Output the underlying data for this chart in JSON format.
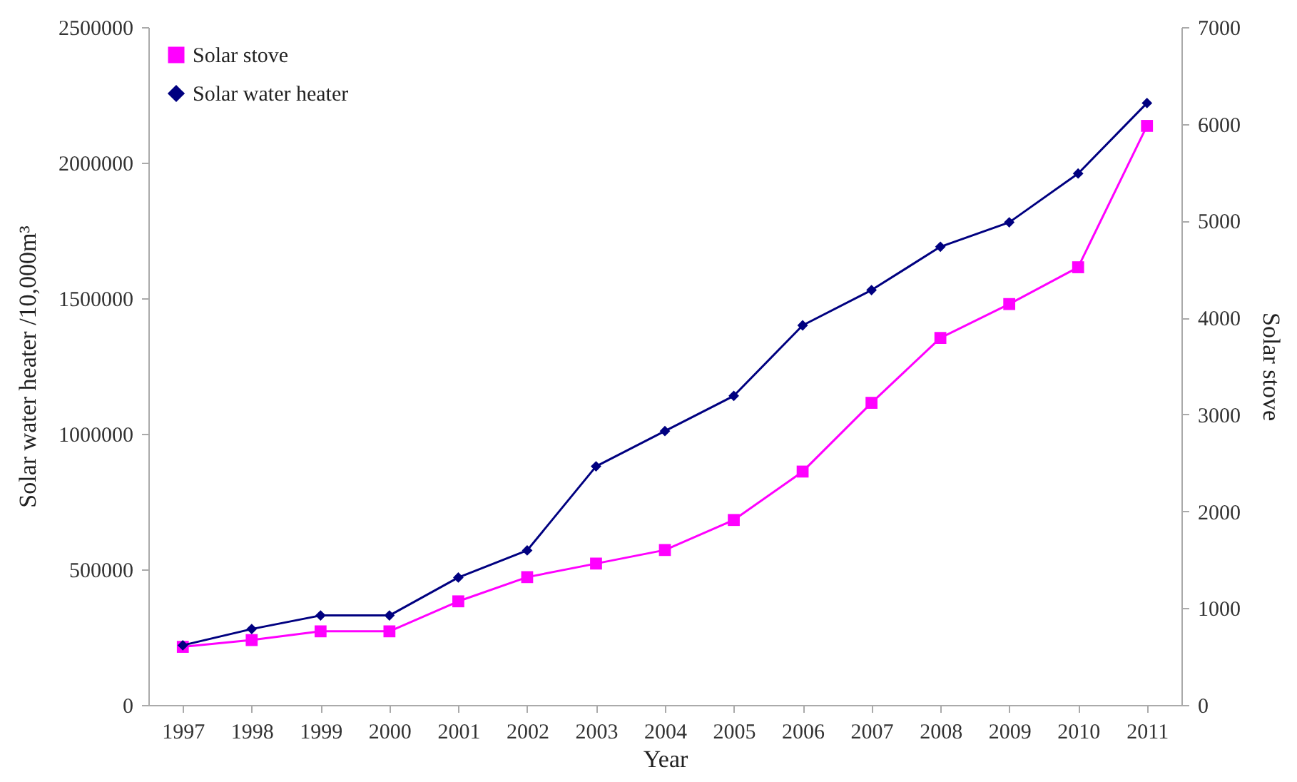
{
  "chart_data": {
    "type": "line",
    "xlabel": "Year",
    "ylabel": "Solar water heater /10,000m³",
    "y2label": "Solar stove",
    "categories": [
      "1997",
      "1998",
      "1999",
      "2000",
      "2001",
      "2002",
      "2003",
      "2004",
      "2005",
      "2006",
      "2007",
      "2008",
      "2009",
      "2010",
      "2011"
    ],
    "series": [
      {
        "name": "Solar stove",
        "color": "#ff00ff",
        "marker": "square",
        "axis": "y2",
        "values": [
          600,
          670,
          760,
          760,
          1070,
          1320,
          1460,
          1600,
          1910,
          2410,
          3120,
          3790,
          4140,
          4520,
          5980
        ]
      },
      {
        "name": "Solar water heater",
        "color": "#000080",
        "marker": "diamond",
        "axis": "y",
        "values": [
          220000,
          280000,
          330000,
          330000,
          470000,
          570000,
          880000,
          1010000,
          1140000,
          1400000,
          1530000,
          1690000,
          1780000,
          1960000,
          2220000
        ]
      }
    ],
    "ylim": [
      0,
      2500000
    ],
    "yticks": [
      0,
      500000,
      1000000,
      1500000,
      2000000,
      2500000
    ],
    "y2lim": [
      0,
      7000
    ],
    "y2ticks": [
      0,
      1000,
      2000,
      3000,
      4000,
      5000,
      6000,
      7000
    ],
    "grid": false,
    "legend": "top left"
  }
}
